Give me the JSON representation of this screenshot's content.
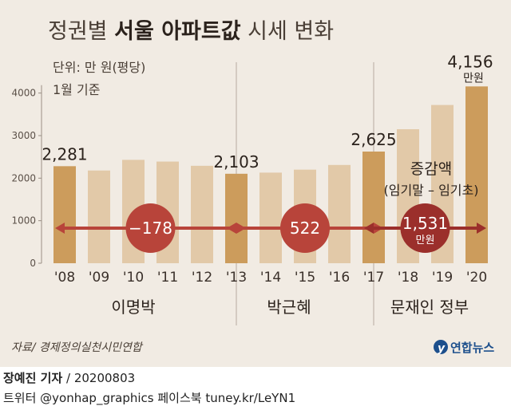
{
  "header": {
    "title_pre": "정권별 ",
    "title_bold": "서울 아파트값",
    "title_post": " 시세 변화",
    "unit_note": "단위: 만 원(평당)",
    "basis_note": "1월 기준"
  },
  "chart_data": {
    "type": "bar",
    "title": "정권별 서울 아파트값 시세 변화",
    "unit": "단위: 만 원(평당)",
    "categories": [
      "'08",
      "'09",
      "'10",
      "'11",
      "'12",
      "'13",
      "'14",
      "'15",
      "'16",
      "'17",
      "'18",
      "'19",
      "'20"
    ],
    "values": [
      2281,
      2180,
      2430,
      2390,
      2290,
      2103,
      2130,
      2200,
      2310,
      2625,
      3150,
      3720,
      4156
    ],
    "highlighted": [
      0,
      5,
      9,
      12
    ],
    "value_labels": [
      {
        "index": 0,
        "text": "2,281"
      },
      {
        "index": 5,
        "text": "2,103"
      },
      {
        "index": 9,
        "text": "2,625"
      },
      {
        "index": 12,
        "text": "4,156",
        "unit": "만원"
      }
    ],
    "ylim": [
      0,
      4500
    ],
    "yticks": [
      0,
      1000,
      2000,
      3000,
      4000
    ],
    "ytick_labels": [
      "0",
      "1000",
      "2000",
      "3000",
      "4000"
    ],
    "governments": [
      {
        "name": "이명박",
        "from": 0,
        "to": 5,
        "change": "−178"
      },
      {
        "name": "박근혜",
        "from": 5,
        "to": 9,
        "change": "522"
      },
      {
        "name": "문재인 정부",
        "from": 9,
        "to": 12,
        "change": "1,531",
        "change_unit": "만원"
      }
    ],
    "increase_label": "증감액",
    "increase_sub": "(임기말 – 임기초)",
    "colors": {
      "bar": "#e2c9a8",
      "bar_highlight": "#cc9c5c",
      "arrow": "#b8443a",
      "circle": "#c04a3e",
      "circle_last": "#9b2f2b"
    }
  },
  "source": "자료/ 경제정의실천시민연합",
  "logo": "연합뉴스",
  "footer": {
    "reporter": "장예진 기자",
    "date": " / 20200803",
    "social": "트위터 @yonhap_graphics  페이스북 tuney.kr/LeYN1"
  }
}
